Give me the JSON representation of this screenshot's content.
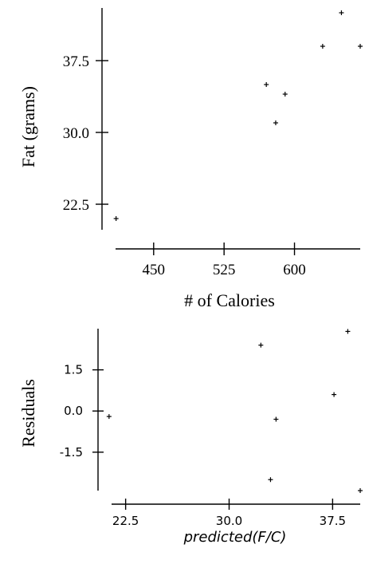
{
  "chart_data": [
    {
      "type": "scatter",
      "title": "",
      "xlabel": "# of Calories",
      "ylabel": "Fat (grams)",
      "xlim": [
        395,
        670
      ],
      "ylim": [
        19.5,
        43
      ],
      "xticks": [
        {
          "value": 450,
          "label": "450"
        },
        {
          "value": 525,
          "label": "525"
        },
        {
          "value": 600,
          "label": "600"
        }
      ],
      "yticks": [
        {
          "value": 22.5,
          "label": "22.5"
        },
        {
          "value": 30.0,
          "label": "30.0"
        },
        {
          "value": 37.5,
          "label": "37.5"
        }
      ],
      "points": [
        {
          "x": 410,
          "y": 21.0
        },
        {
          "x": 570,
          "y": 35.0
        },
        {
          "x": 580,
          "y": 31.0
        },
        {
          "x": 590,
          "y": 34.0
        },
        {
          "x": 630,
          "y": 39.0
        },
        {
          "x": 650,
          "y": 42.5
        },
        {
          "x": 670,
          "y": 39.0
        }
      ],
      "grid": false
    },
    {
      "type": "scatter",
      "title": "",
      "xlabel": "predicted(F/C)",
      "ylabel": "Residuals",
      "xlim": [
        20.5,
        39.5
      ],
      "ylim": [
        -2.9,
        3.0
      ],
      "xticks": [
        {
          "value": 22.5,
          "label": "22.5"
        },
        {
          "value": 30.0,
          "label": "30.0"
        },
        {
          "value": 37.5,
          "label": "37.5"
        }
      ],
      "yticks": [
        {
          "value": 1.5,
          "label": "1.5"
        },
        {
          "value": 0.0,
          "label": "0.0"
        },
        {
          "value": -1.5,
          "label": "-1.5"
        }
      ],
      "points": [
        {
          "x": 21.3,
          "y": -0.2
        },
        {
          "x": 32.3,
          "y": 2.4
        },
        {
          "x": 33.4,
          "y": -0.3
        },
        {
          "x": 33.0,
          "y": -2.5
        },
        {
          "x": 37.6,
          "y": 0.6
        },
        {
          "x": 38.6,
          "y": 2.9
        },
        {
          "x": 39.5,
          "y": -2.9
        }
      ],
      "grid": false
    }
  ]
}
